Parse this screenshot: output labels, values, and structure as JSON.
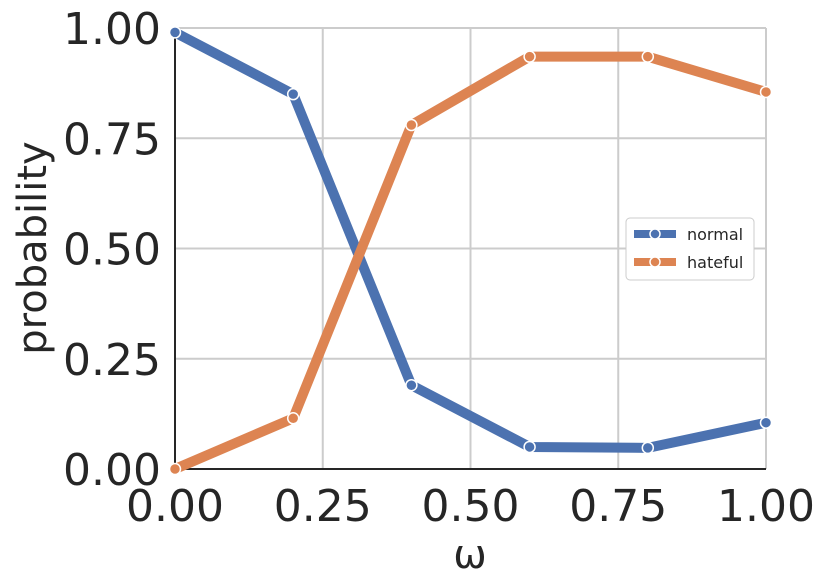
{
  "chart_data": {
    "type": "line",
    "xlabel": "ω",
    "ylabel": "probability",
    "xlim": [
      0,
      1
    ],
    "ylim": [
      0,
      1
    ],
    "x_ticks": [
      "0.00",
      "0.25",
      "0.50",
      "0.75",
      "1.00"
    ],
    "y_ticks": [
      "0.00",
      "0.25",
      "0.50",
      "0.75",
      "1.00"
    ],
    "grid": true,
    "legend_position": "center-right",
    "x": [
      0.0,
      0.2,
      0.4,
      0.6,
      0.8,
      1.0
    ],
    "series": [
      {
        "name": "normal",
        "color": "#4c72b0",
        "values": [
          0.99,
          0.85,
          0.19,
          0.05,
          0.048,
          0.105
        ]
      },
      {
        "name": "hateful",
        "color": "#dd8452",
        "values": [
          0.0,
          0.115,
          0.78,
          0.935,
          0.935,
          0.855
        ]
      }
    ]
  }
}
